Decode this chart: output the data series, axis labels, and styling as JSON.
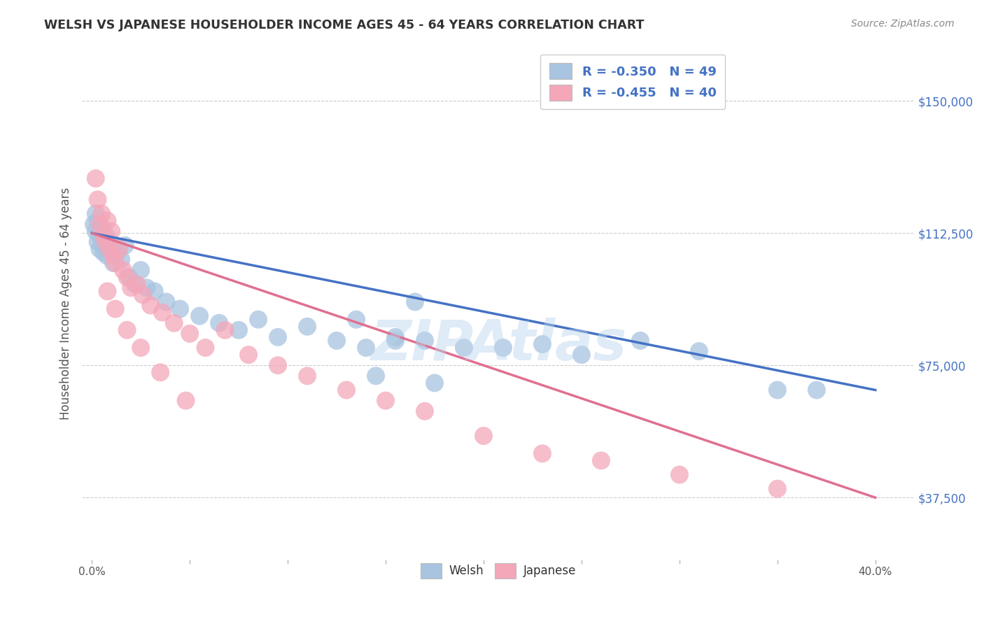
{
  "title": "WELSH VS JAPANESE HOUSEHOLDER INCOME AGES 45 - 64 YEARS CORRELATION CHART",
  "source": "Source: ZipAtlas.com",
  "xlabel_ticks_show": [
    "0.0%",
    "40.0%"
  ],
  "xlabel_tick_vals_show": [
    0.0,
    0.4
  ],
  "xlabel_tick_vals_minor": [
    0.05,
    0.1,
    0.15,
    0.2,
    0.25,
    0.3,
    0.35
  ],
  "ylabel": "Householder Income Ages 45 - 64 years",
  "ylabel_ticks": [
    "$37,500",
    "$75,000",
    "$112,500",
    "$150,000"
  ],
  "ylabel_tick_vals": [
    37500,
    75000,
    112500,
    150000
  ],
  "ylim": [
    20000,
    165000
  ],
  "xlim": [
    -0.005,
    0.42
  ],
  "welsh_R": -0.35,
  "welsh_N": 49,
  "japanese_R": -0.455,
  "japanese_N": 40,
  "welsh_color": "#a8c4e0",
  "japanese_color": "#f4a7b9",
  "welsh_line_color": "#4472c4",
  "japanese_line_color": "#e07090",
  "legend_text_color": "#4472c4",
  "watermark": "ZIPAtlas",
  "welsh_x": [
    0.001,
    0.002,
    0.002,
    0.003,
    0.003,
    0.004,
    0.004,
    0.005,
    0.005,
    0.006,
    0.006,
    0.007,
    0.008,
    0.009,
    0.01,
    0.011,
    0.013,
    0.015,
    0.017,
    0.019,
    0.022,
    0.025,
    0.028,
    0.032,
    0.038,
    0.045,
    0.055,
    0.065,
    0.075,
    0.085,
    0.095,
    0.11,
    0.125,
    0.14,
    0.155,
    0.17,
    0.19,
    0.21,
    0.23,
    0.25,
    0.28,
    0.31,
    0.35,
    0.165,
    0.135,
    0.155,
    0.175,
    0.145,
    0.37
  ],
  "welsh_y": [
    115000,
    113000,
    118000,
    110000,
    116000,
    112000,
    108000,
    114000,
    111000,
    109000,
    107000,
    112000,
    106000,
    110000,
    108000,
    104000,
    107000,
    105000,
    109000,
    100000,
    98000,
    102000,
    97000,
    96000,
    93000,
    91000,
    89000,
    87000,
    85000,
    88000,
    83000,
    86000,
    82000,
    80000,
    83000,
    82000,
    80000,
    80000,
    81000,
    78000,
    82000,
    79000,
    68000,
    93000,
    88000,
    82000,
    70000,
    72000,
    68000
  ],
  "japanese_x": [
    0.002,
    0.003,
    0.004,
    0.005,
    0.006,
    0.007,
    0.008,
    0.009,
    0.01,
    0.011,
    0.012,
    0.014,
    0.016,
    0.018,
    0.02,
    0.023,
    0.026,
    0.03,
    0.036,
    0.042,
    0.05,
    0.058,
    0.068,
    0.08,
    0.095,
    0.11,
    0.13,
    0.15,
    0.17,
    0.2,
    0.23,
    0.26,
    0.3,
    0.35,
    0.008,
    0.012,
    0.018,
    0.025,
    0.035,
    0.048
  ],
  "japanese_y": [
    128000,
    122000,
    115000,
    118000,
    112000,
    110000,
    116000,
    108000,
    113000,
    106000,
    104000,
    108000,
    102000,
    100000,
    97000,
    98000,
    95000,
    92000,
    90000,
    87000,
    84000,
    80000,
    85000,
    78000,
    75000,
    72000,
    68000,
    65000,
    62000,
    55000,
    50000,
    48000,
    44000,
    40000,
    96000,
    91000,
    85000,
    80000,
    73000,
    65000
  ]
}
